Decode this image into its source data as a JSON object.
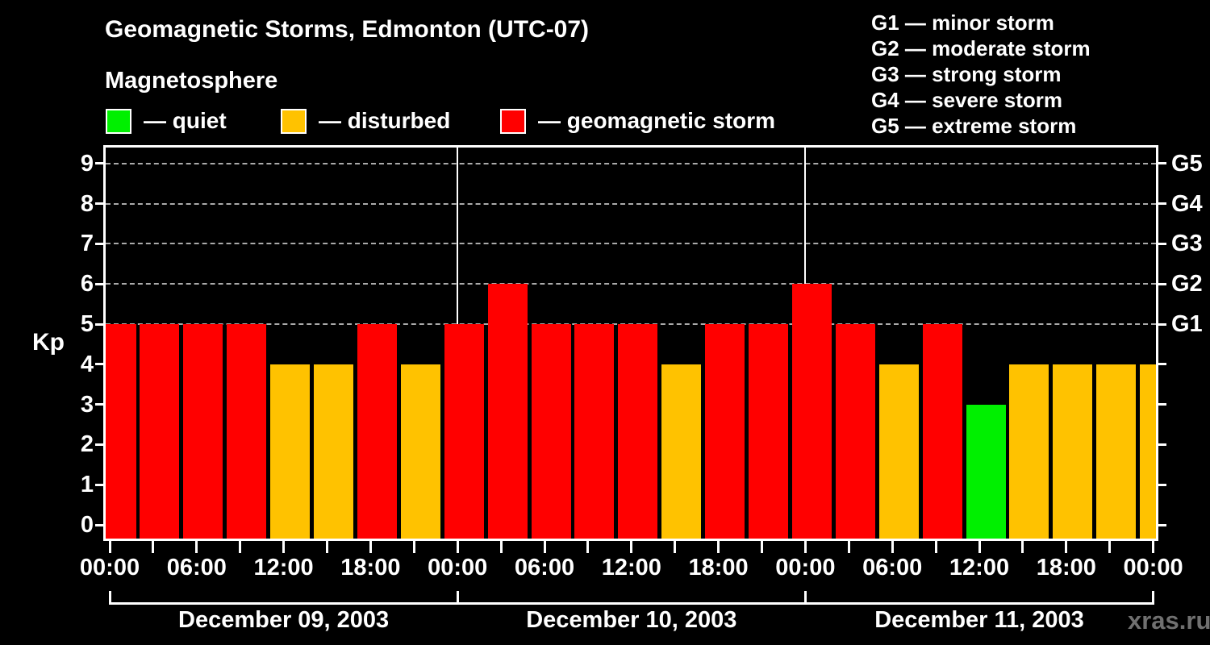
{
  "title": "Geomagnetic Storms, Edmonton (UTC-07)",
  "subtitle": "Magnetosphere",
  "kp_axis_label": "Kp",
  "watermark": "xras.ru",
  "legend": {
    "items": [
      {
        "name": "quiet",
        "color": "#00f000",
        "label": "— quiet"
      },
      {
        "name": "disturbed",
        "color": "#ffc200",
        "label": "— disturbed"
      },
      {
        "name": "storm",
        "color": "#ff0000",
        "label": "— geomagnetic storm"
      }
    ]
  },
  "g_scale_legend": {
    "items": [
      "G1 — minor storm",
      "G2 — moderate storm",
      "G3 — strong storm",
      "G4 — severe storm",
      "G5 — extreme storm"
    ]
  },
  "chart_data": {
    "type": "bar",
    "title": "Geomagnetic Storms, Edmonton (UTC-07)",
    "ylabel": "Kp",
    "ylim": [
      0,
      9.6
    ],
    "yticks": [
      0,
      1,
      2,
      3,
      4,
      5,
      6,
      7,
      8,
      9
    ],
    "right_axis": [
      {
        "kp": 5,
        "label": "G1"
      },
      {
        "kp": 6,
        "label": "G2"
      },
      {
        "kp": 7,
        "label": "G3"
      },
      {
        "kp": 8,
        "label": "G4"
      },
      {
        "kp": 9,
        "label": "G5"
      }
    ],
    "grid": {
      "dashed_levels": [
        5,
        6,
        7,
        8,
        9
      ],
      "color": "#aaaaaa",
      "style": "dashed"
    },
    "bar_interval_hours": 3,
    "x_tick_labels": [
      "00:00",
      "06:00",
      "12:00",
      "18:00",
      "00:00",
      "06:00",
      "12:00",
      "18:00",
      "00:00",
      "06:00",
      "12:00",
      "18:00",
      "00:00"
    ],
    "days": [
      {
        "date": "December 09, 2003",
        "kp_values": [
          5,
          5,
          5,
          5,
          4,
          4,
          5,
          4
        ]
      },
      {
        "date": "December 10, 2003",
        "kp_values": [
          5,
          6,
          5,
          5,
          5,
          4,
          5,
          5
        ]
      },
      {
        "date": "December 11, 2003",
        "kp_values": [
          6,
          5,
          4,
          5,
          3,
          4,
          4,
          4
        ]
      }
    ],
    "trailing_kp_value": 4,
    "colors": {
      "quiet": "#00f000",
      "disturbed": "#ffc200",
      "storm": "#ff0000"
    },
    "color_rule": {
      "quiet_max": 3,
      "disturbed": 4,
      "storm_min": 5
    },
    "legend_position": "top-left",
    "day_separator_lines": true
  }
}
